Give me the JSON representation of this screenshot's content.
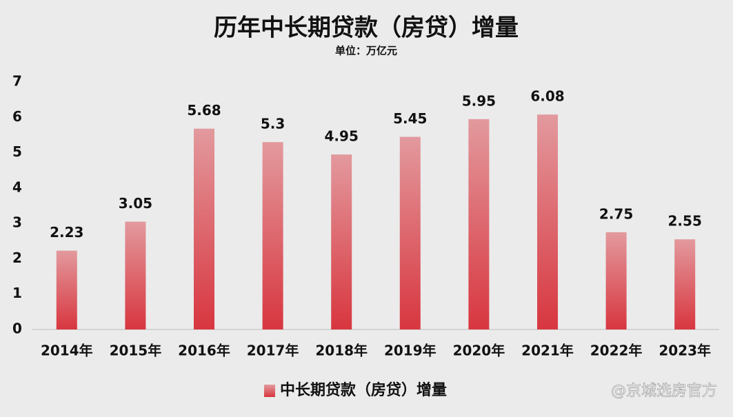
{
  "chart_data": {
    "type": "bar",
    "title": "历年中长期贷款（房贷）增量",
    "subtitle": "单位：万亿元",
    "categories": [
      "2014年",
      "2015年",
      "2016年",
      "2017年",
      "2018年",
      "2019年",
      "2020年",
      "2021年",
      "2022年",
      "2023年"
    ],
    "series": [
      {
        "name": "中长期贷款（房贷）增量",
        "color": "#d8363f",
        "values": [
          2.23,
          3.05,
          5.68,
          5.3,
          4.95,
          5.45,
          5.95,
          6.08,
          2.75,
          2.55
        ]
      }
    ],
    "ylim": [
      0,
      7
    ],
    "yticks": [
      0,
      1,
      2,
      3,
      4,
      5,
      6,
      7
    ],
    "grid": false,
    "legend": "bottom"
  },
  "watermark": "@京城选房官方"
}
